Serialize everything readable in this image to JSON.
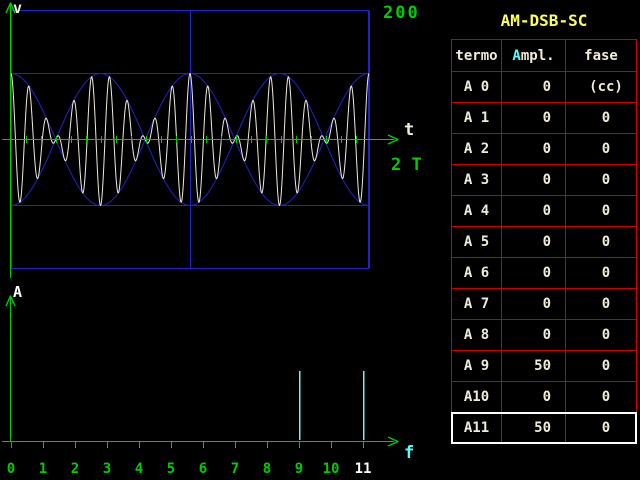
{
  "app_title": "AM-DSB-SC",
  "colors": {
    "background": "#000000",
    "table_border": "#cd0000",
    "title": "#ffff55",
    "green": "#00cc00",
    "blue": "#2222cc",
    "cyan": "#55ffff",
    "cyan_light": "#7de9f2",
    "cream": "#f0ecd6",
    "white": "#ffffff"
  },
  "labels": {
    "v_axis": "v",
    "t_axis": "t",
    "time_window": "2 T",
    "v_scale": "200",
    "a_axis": "A",
    "f_axis": "f"
  },
  "table": {
    "title": "AM-DSB-SC",
    "header": {
      "termo": "termo",
      "ampl_hotkey": "A",
      "ampl_rest": "mpl.",
      "fase": "fase"
    },
    "rows": [
      {
        "termo": "A 0",
        "ampl": "0",
        "fase": "(cc)",
        "selected": false
      },
      {
        "termo": "A 1",
        "ampl": "0",
        "fase": "0",
        "selected": false
      },
      {
        "termo": "A 2",
        "ampl": "0",
        "fase": "0",
        "selected": false
      },
      {
        "termo": "A 3",
        "ampl": "0",
        "fase": "0",
        "selected": false
      },
      {
        "termo": "A 4",
        "ampl": "0",
        "fase": "0",
        "selected": false
      },
      {
        "termo": "A 5",
        "ampl": "0",
        "fase": "0",
        "selected": false
      },
      {
        "termo": "A 6",
        "ampl": "0",
        "fase": "0",
        "selected": false
      },
      {
        "termo": "A 7",
        "ampl": "0",
        "fase": "0",
        "selected": false
      },
      {
        "termo": "A 8",
        "ampl": "0",
        "fase": "0",
        "selected": false
      },
      {
        "termo": "A 9",
        "ampl": "50",
        "fase": "0",
        "selected": false
      },
      {
        "termo": "A10",
        "ampl": "0",
        "fase": "0",
        "selected": false
      },
      {
        "termo": "A11",
        "ampl": "50",
        "fase": "0",
        "selected": true
      }
    ]
  },
  "chart_data": [
    {
      "type": "line",
      "title": "AM-DSB-SC modulated signal over two fundamental periods",
      "xlabel": "t",
      "ylabel": "v",
      "x_window_label": "2 T",
      "x_range_in_periods": [
        0,
        2
      ],
      "y_scale_top_label": "200",
      "ylim": [
        -200,
        200
      ],
      "envelope_peak": 100,
      "envelope_levels": [
        100,
        -100
      ],
      "box_levels": [
        200,
        -200
      ],
      "period_divider_at": 1,
      "components": [
        {
          "harmonic": 9,
          "amplitude": 50,
          "phase": 0
        },
        {
          "harmonic": 11,
          "amplitude": 50,
          "phase": 0
        }
      ],
      "axis_ticks_per_window": 24,
      "grid": false,
      "legend": false
    },
    {
      "type": "bar",
      "title": "Amplitude spectrum",
      "xlabel": "f",
      "ylabel": "A",
      "categories": [
        0,
        1,
        2,
        3,
        4,
        5,
        6,
        7,
        8,
        9,
        10,
        11
      ],
      "values": [
        0,
        0,
        0,
        0,
        0,
        0,
        0,
        0,
        0,
        50,
        0,
        50
      ],
      "highlight_category": 11,
      "bar_style": "impulse-line",
      "grid": false,
      "legend": false
    }
  ]
}
